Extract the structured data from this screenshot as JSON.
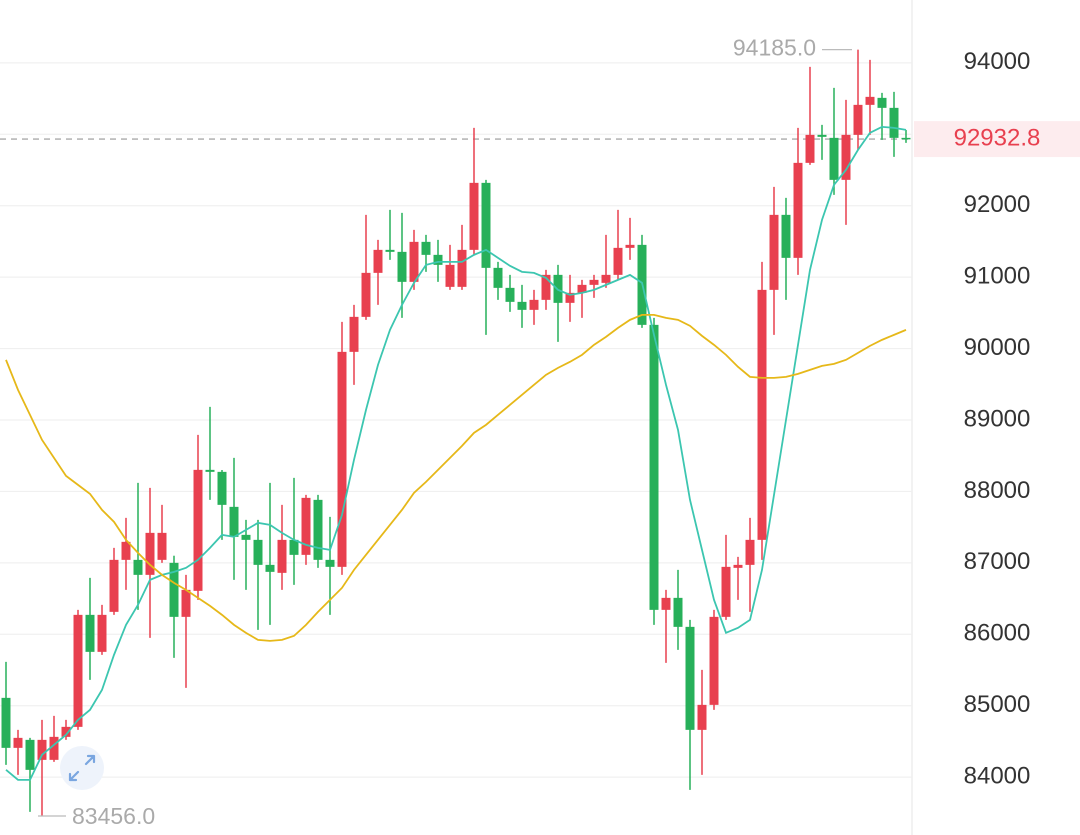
{
  "chart_data": {
    "type": "candlestick",
    "open": [
      85110,
      84410,
      84522,
      84242,
      84242,
      84564,
      84704,
      86272,
      85754,
      86314,
      87042,
      87042,
      86832,
      87042,
      87000,
      86244,
      86608,
      88302,
      88274,
      87784,
      87392,
      87322,
      86972,
      86860,
      87322,
      87112,
      87882,
      87042,
      86944,
      89954,
      90444,
      91060,
      91382,
      91354,
      90934,
      91494,
      91312,
      90864,
      90864,
      91382,
      92320,
      91130,
      90850,
      90654,
      90542,
      90682,
      91032,
      90640,
      90780,
      90892,
      90920,
      91032,
      91410,
      91452,
      90332,
      86342,
      86510,
      86104,
      84662,
      85012,
      86244,
      86930,
      86972,
      87322,
      90822,
      91872,
      91270,
      92600,
      92992,
      92950,
      92362,
      92992,
      93412,
      93510,
      93370,
      92950
    ],
    "high": [
      85614,
      84662,
      84550,
      84802,
      84858,
      84802,
      86342,
      86790,
      86412,
      87210,
      87630,
      88120,
      88050,
      87812,
      87100,
      86832,
      88792,
      89184,
      88300,
      88470,
      87602,
      87602,
      88120,
      87812,
      88190,
      87952,
      87952,
      87644,
      90374,
      90612,
      91872,
      91522,
      91942,
      91900,
      91662,
      91592,
      91522,
      91452,
      91732,
      93090,
      92362,
      91214,
      91032,
      90892,
      90822,
      91102,
      91172,
      91032,
      90962,
      91032,
      91592,
      91942,
      91830,
      91592,
      90430,
      86622,
      86902,
      86202,
      85502,
      86342,
      87392,
      87084,
      87630,
      91214,
      92264,
      92110,
      93090,
      93944,
      93132,
      93650,
      93482,
      94185,
      94042,
      93580,
      93594,
      93060
    ],
    "low": [
      84172,
      84032,
      83514,
      83456,
      84214,
      84522,
      84662,
      85362,
      85712,
      86272,
      86622,
      86342,
      85950,
      87000,
      85670,
      85250,
      86482,
      87882,
      87322,
      86762,
      86622,
      86062,
      86132,
      86622,
      86692,
      86972,
      86930,
      86272,
      86832,
      89492,
      90402,
      90612,
      91242,
      90430,
      90822,
      91074,
      90934,
      90822,
      90822,
      91312,
      90192,
      90682,
      90514,
      90290,
      90332,
      90542,
      90094,
      90374,
      90430,
      90710,
      90850,
      90962,
      91242,
      90290,
      86132,
      85600,
      85782,
      83822,
      84032,
      84942,
      86202,
      86482,
      86314,
      87042,
      90192,
      90682,
      91032,
      92572,
      92642,
      92152,
      91732,
      92782,
      92992,
      92922,
      92684,
      92880
    ],
    "close": [
      84410,
      84550,
      84102,
      84522,
      84564,
      84704,
      86272,
      85754,
      86272,
      87042,
      87294,
      86832,
      87420,
      87420,
      86244,
      86622,
      88302,
      88274,
      87812,
      87364,
      87322,
      86972,
      86874,
      87322,
      87112,
      87910,
      87042,
      86944,
      89954,
      90444,
      91060,
      91382,
      91354,
      90934,
      91494,
      91312,
      91172,
      91172,
      91382,
      92320,
      91130,
      90850,
      90654,
      90542,
      90682,
      91032,
      90640,
      90780,
      90892,
      90962,
      91032,
      91410,
      91452,
      90332,
      86342,
      86510,
      86104,
      84662,
      85012,
      86244,
      86944,
      86972,
      87322,
      90822,
      91872,
      91270,
      92600,
      92992,
      92964,
      92362,
      92992,
      93412,
      93524,
      93370,
      92950,
      92932.8
    ],
    "up_color": "#e8404f",
    "down_color": "#27b05a",
    "lines": [
      {
        "color": "#3cc6b0",
        "values": [
          84102,
          83962,
          83962,
          84312,
          84452,
          84592,
          84802,
          84942,
          85222,
          85712,
          86132,
          86412,
          86762,
          86832,
          86874,
          86930,
          87042,
          87210,
          87392,
          87364,
          87462,
          87560,
          87532,
          87420,
          87322,
          87252,
          87210,
          87182,
          87672,
          88442,
          89142,
          89772,
          90262,
          90612,
          90920,
          91172,
          91214,
          91214,
          91214,
          91312,
          91382,
          91270,
          91158,
          91074,
          91060,
          90990,
          90822,
          90752,
          90780,
          90822,
          90892,
          90962,
          91032,
          90920,
          90192,
          89492,
          88862,
          87882,
          87182,
          86482,
          86020,
          86090,
          86202,
          86902,
          87952,
          89002,
          90052,
          91102,
          91802,
          92292,
          92502,
          92782,
          93020,
          93104,
          93090,
          93062
        ]
      },
      {
        "color": "#e6b819",
        "values": [
          89842,
          89422,
          89072,
          88722,
          88470,
          88218,
          88092,
          87966,
          87742,
          87574,
          87322,
          87140,
          86972,
          86832,
          86720,
          86622,
          86510,
          86398,
          86272,
          86132,
          86020,
          85922,
          85908,
          85922,
          85978,
          86132,
          86314,
          86482,
          86650,
          86902,
          87112,
          87322,
          87532,
          87742,
          87980,
          88134,
          88302,
          88470,
          88638,
          88820,
          88932,
          89072,
          89212,
          89352,
          89492,
          89632,
          89730,
          89814,
          89912,
          90052,
          90164,
          90290,
          90402,
          90472,
          90472,
          90430,
          90402,
          90318,
          90178,
          90052,
          89912,
          89744,
          89604,
          89590,
          89590,
          89604,
          89646,
          89702,
          89758,
          89786,
          89842,
          89940,
          90038,
          90122,
          90192,
          90262
        ]
      }
    ],
    "ylim": [
      83190,
      94880
    ],
    "yticks": [
      84000,
      85000,
      86000,
      87000,
      88000,
      89000,
      90000,
      91000,
      92000,
      93000,
      94000
    ],
    "grid": true,
    "last_price": 92932.8,
    "max_label": {
      "value": 94185,
      "label": "94185.0"
    },
    "min_label": {
      "value": 83456,
      "label": "83456.0"
    }
  }
}
